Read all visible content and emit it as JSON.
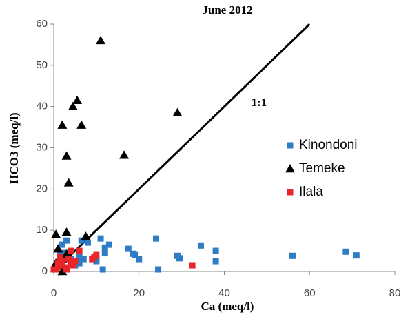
{
  "chart_data": {
    "type": "scatter",
    "title": "June 2012",
    "x_label": "Ca (meq/l)",
    "y_label": "HCO3 (meq/l)",
    "annotations": [
      "1:1"
    ],
    "xlim": [
      0,
      80
    ],
    "xticks": [
      0,
      20,
      40,
      60,
      80
    ],
    "ylim": [
      0,
      60
    ],
    "yticks": [
      0,
      10,
      20,
      30,
      40,
      50,
      60
    ],
    "grid": false,
    "legend": "right",
    "series": [
      {
        "name": "Kinondoni",
        "color": "#2e7dc4",
        "marker": "square",
        "x": [
          24,
          34.5,
          38,
          38,
          56,
          68.5,
          71,
          29,
          29.5,
          24.5,
          17.5,
          18.5,
          19,
          20,
          11,
          13,
          12,
          12,
          11.5,
          10,
          10,
          8,
          6.5,
          6,
          6,
          3,
          2,
          1.5,
          2.5,
          4,
          7,
          5
        ],
        "values": [
          8,
          6.3,
          5,
          2.5,
          3.8,
          4.8,
          3.9,
          3.8,
          3.2,
          0.5,
          5.5,
          4.3,
          4,
          3,
          8,
          6.5,
          5.8,
          4.5,
          0.5,
          3,
          2.5,
          7,
          7.5,
          2,
          3.5,
          7.5,
          6.5,
          4,
          4.5,
          3,
          3,
          1.5
        ]
      },
      {
        "name": "Temeke",
        "color": "#000000",
        "marker": "triangle",
        "x": [
          11,
          29,
          5.5,
          4.5,
          2,
          6.5,
          16.5,
          3,
          3.5,
          3,
          7.5,
          0.5,
          1,
          3,
          2,
          0.5,
          2
        ],
        "values": [
          56,
          38.5,
          41.5,
          40,
          35.5,
          35.5,
          28.2,
          28,
          21.5,
          9.5,
          8.5,
          9,
          5.5,
          4.2,
          3,
          2,
          0
        ]
      },
      {
        "name": "Ilala",
        "color": "#e8262a",
        "marker": "square",
        "x": [
          32.5,
          9.5,
          10,
          9,
          6,
          4,
          3.5,
          4,
          5,
          4.5,
          3,
          2,
          1,
          0.5,
          1.5,
          2,
          0,
          1,
          3
        ],
        "values": [
          1.5,
          3.5,
          4,
          3,
          5,
          5,
          3,
          2,
          2.5,
          1.5,
          1,
          1.5,
          1,
          0.5,
          3.5,
          2.5,
          0.5,
          2,
          0.5
        ]
      }
    ]
  }
}
